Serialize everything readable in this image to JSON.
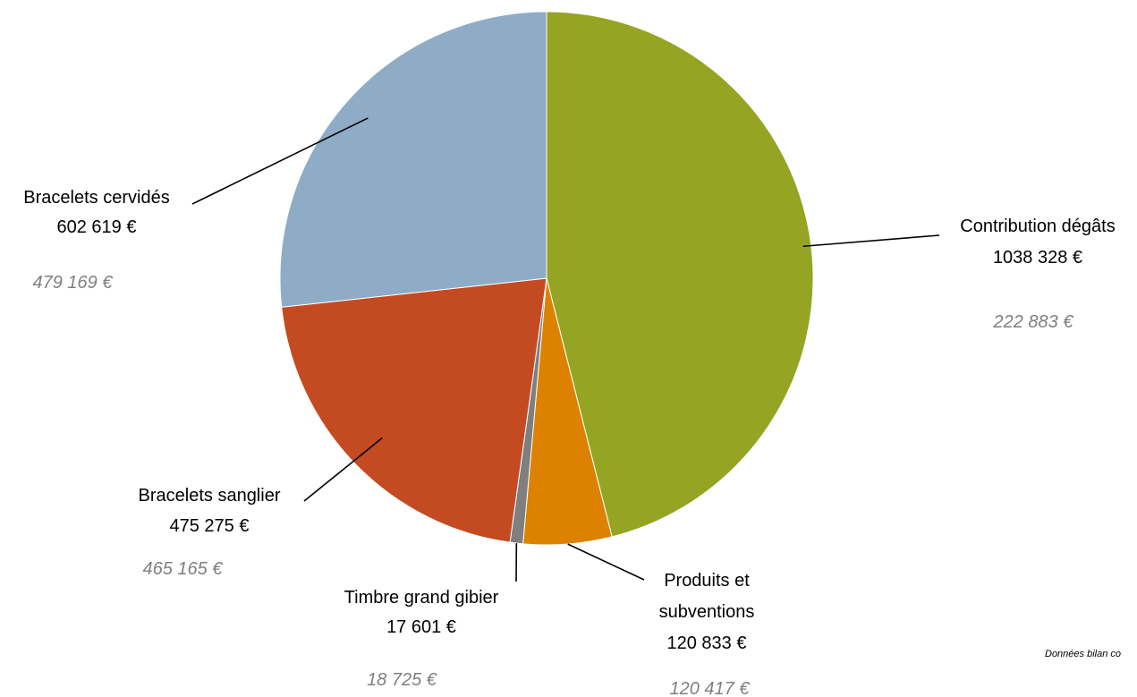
{
  "chart_data": {
    "type": "pie",
    "slices": [
      {
        "name": "Contribution dégâts",
        "value": 1038328,
        "value_label": "1038 328 €",
        "previous_label": "222 883 €",
        "color": "#95a523"
      },
      {
        "name": "Produits et subventions",
        "value": 120833,
        "value_label": "120 833 €",
        "previous_label": "120 417 €",
        "color": "#dc8200"
      },
      {
        "name": "Timbre grand gibier",
        "value": 17601,
        "value_label": "17 601 €",
        "previous_label": "18 725 €",
        "color": "#7f7f7f"
      },
      {
        "name": "Bracelets sanglier",
        "value": 475275,
        "value_label": "475 275 €",
        "previous_label": "465 165 €",
        "color": "#c44a22"
      },
      {
        "name": "Bracelets cervidés",
        "value": 602619,
        "value_label": "602 619 €",
        "previous_label": "479 169 €",
        "color": "#8eacc6"
      }
    ],
    "start": "12 o'clock",
    "direction": "clockwise",
    "label_lines": {
      "Contribution dégâts": [
        "Contribution dégâts"
      ],
      "Produits et subventions": [
        "Produits et",
        "subventions"
      ],
      "Timbre grand gibier": [
        "Timbre grand gibier"
      ],
      "Bracelets sanglier": [
        "Bracelets sanglier"
      ],
      "Bracelets cervidés": [
        "Bracelets cervidés"
      ]
    },
    "source_note": "Données bilan co"
  }
}
